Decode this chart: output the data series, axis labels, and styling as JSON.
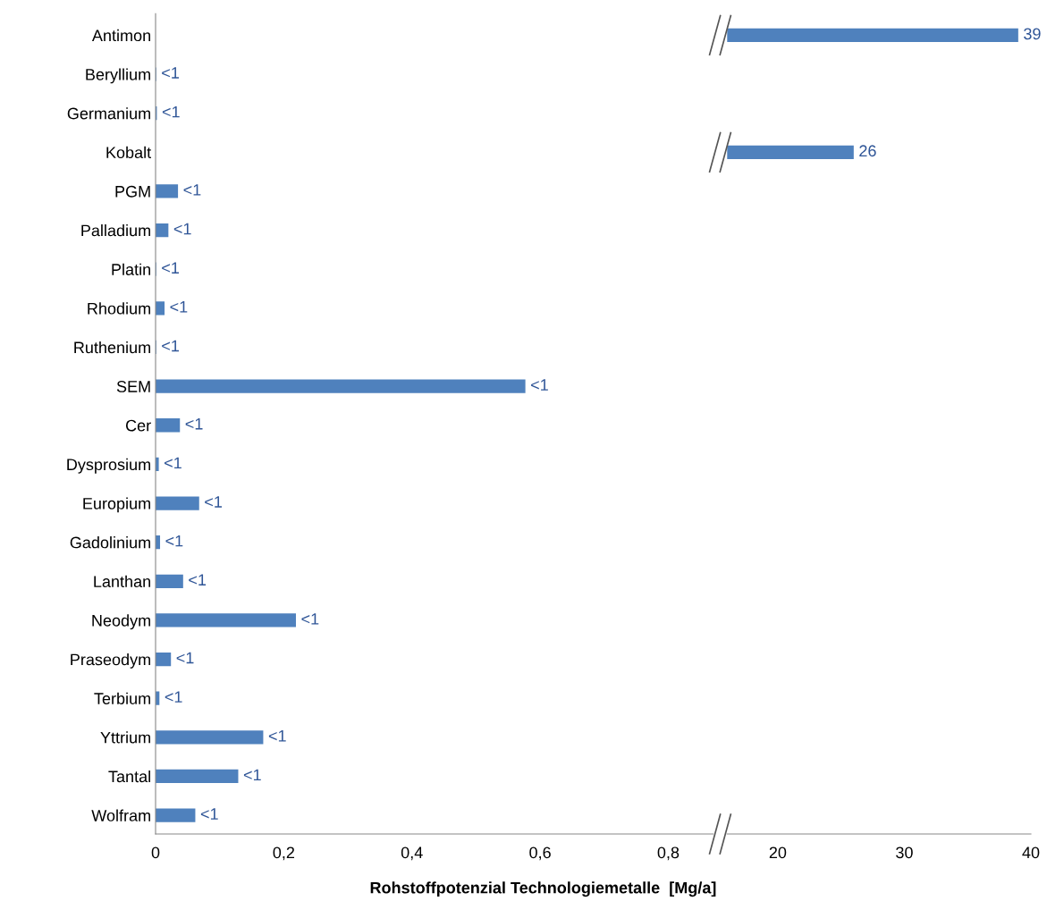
{
  "chart_data": [
    {
      "type": "bar",
      "orientation": "horizontal",
      "xlabel": "Rohstoffpotenzial Technologiemetalle  [Mg/a]",
      "categories": [
        "Antimon",
        "Beryllium",
        "Germanium",
        "Kobalt",
        "PGM",
        "Palladium",
        "Platin",
        "Rhodium",
        "Ruthenium",
        "SEM",
        "Cer",
        "Dysprosium",
        "Europium",
        "Gadolinium",
        "Lanthan",
        "Neodym",
        "Praseodym",
        "Terbium",
        "Yttrium",
        "Tantal",
        "Wolfram"
      ],
      "values": [
        null,
        0.001,
        0.002,
        null,
        0.035,
        0.02,
        0.001,
        0.014,
        0.001,
        0.577,
        0.038,
        0.005,
        0.068,
        0.007,
        0.043,
        0.219,
        0.024,
        0.006,
        0.168,
        0.129,
        0.062
      ],
      "value_labels": [
        null,
        "<1",
        "<1",
        null,
        "<1",
        "<1",
        "<1",
        "<1",
        "<1",
        "<1",
        "<1",
        "<1",
        "<1",
        "<1",
        "<1",
        "<1",
        "<1",
        "<1",
        "<1",
        "<1",
        "<1"
      ],
      "color": "#4f81bd",
      "xlim": [
        0,
        0.87
      ],
      "xticks": [
        {
          "value": 0,
          "label": "0"
        },
        {
          "value": 0.2,
          "label": "0,2"
        },
        {
          "value": 0.4,
          "label": "0,4"
        },
        {
          "value": 0.6,
          "label": "0,6"
        },
        {
          "value": 0.8,
          "label": "0,8"
        }
      ],
      "grid": false
    },
    {
      "type": "bar",
      "orientation": "horizontal",
      "categories": [
        null,
        null,
        null,
        null,
        null,
        null,
        null,
        null,
        null,
        null,
        null,
        null,
        null,
        null,
        null,
        null,
        null,
        null,
        null,
        null,
        null
      ],
      "values": [
        39,
        null,
        null,
        26,
        null,
        null,
        null,
        null,
        null,
        null,
        null,
        null,
        null,
        null,
        null,
        null,
        null,
        null,
        null,
        null,
        null
      ],
      "value_labels": [
        "39",
        null,
        null,
        "26",
        null,
        null,
        null,
        null,
        null,
        null,
        null,
        null,
        null,
        null,
        null,
        null,
        null,
        null,
        null,
        null,
        null
      ],
      "color": "#4f81bd",
      "xlim": [
        16,
        40
      ],
      "xticks": [
        20,
        30,
        40
      ],
      "tick_labels": "x",
      "grid": false
    }
  ]
}
